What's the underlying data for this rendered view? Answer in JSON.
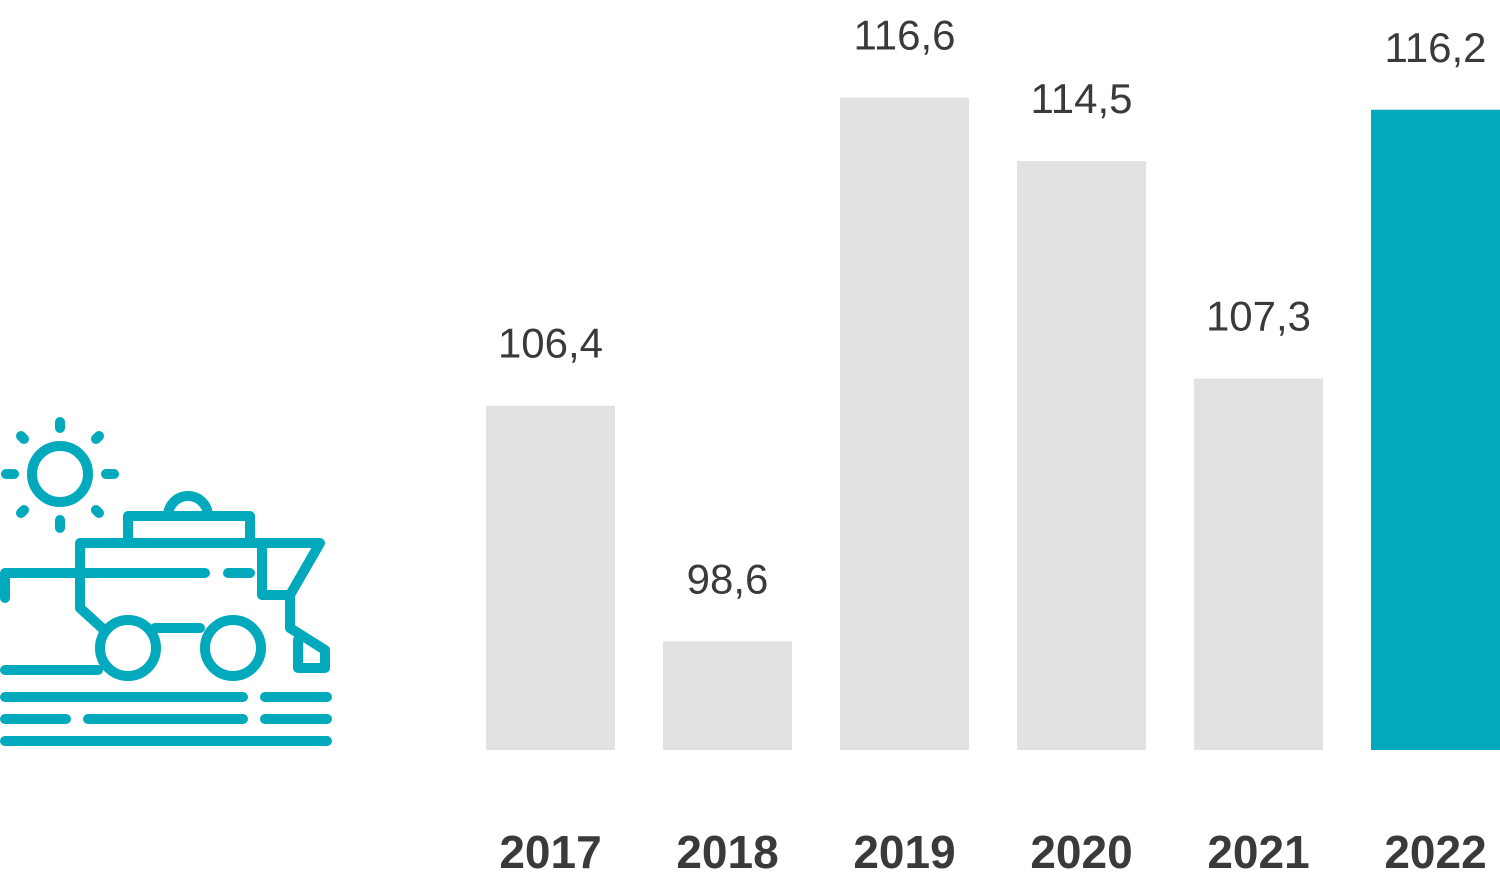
{
  "chart_data": {
    "type": "bar",
    "categories": [
      "2017",
      "2018",
      "2019",
      "2020",
      "2021",
      "2022"
    ],
    "values": [
      106.4,
      98.6,
      116.6,
      114.5,
      107.3,
      116.2
    ],
    "value_labels": [
      "106,4",
      "98,6",
      "116,6",
      "114,5",
      "107,3",
      "116,2"
    ],
    "colors": [
      "#e2e2e2",
      "#e2e2e2",
      "#e2e2e2",
      "#e2e2e2",
      "#e2e2e2",
      "#00a9bb"
    ],
    "ylim": [
      95,
      120
    ]
  }
}
